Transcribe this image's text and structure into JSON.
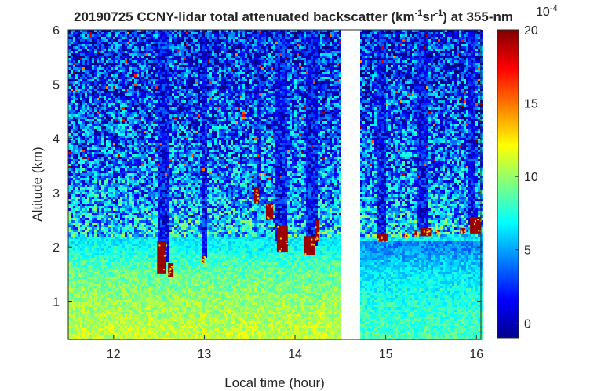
{
  "chart_data": {
    "type": "heatmap",
    "title": {
      "prefix": "20190725 CCNY-lidar total attenuated backscatter (km",
      "sup1": "-1",
      "middle": "sr",
      "sup2": "-1",
      "suffix": ") at 355-nm"
    },
    "xlabel": "Local time (hour)",
    "ylabel": "Altitude (km)",
    "xlim": [
      11.5,
      16.05
    ],
    "ylim": [
      0.3,
      6.0
    ],
    "x_ticks": [
      12,
      13,
      14,
      15,
      16
    ],
    "y_ticks": [
      1,
      2,
      3,
      4,
      5,
      6
    ],
    "colorbar": {
      "clim": [
        -1,
        20
      ],
      "ticks": [
        0,
        5,
        10,
        15,
        20
      ],
      "exponent": "10",
      "exponent_power": "-4",
      "colormap": "jet"
    },
    "data_gap": [
      14.52,
      14.72
    ],
    "background_profile": [
      {
        "alt": 0.3,
        "value": 11.0
      },
      {
        "alt": 1.0,
        "value": 10.0
      },
      {
        "alt": 1.5,
        "value": 9.0
      },
      {
        "alt": 2.0,
        "value": 7.0
      },
      {
        "alt": 3.0,
        "value": 4.5
      },
      {
        "alt": 4.5,
        "value": 3.0
      },
      {
        "alt": 6.0,
        "value": 2.0
      }
    ],
    "clear_columns": [
      {
        "t": 12.55,
        "width": 0.12,
        "from_alt": 1.7
      },
      {
        "t": 13.0,
        "width": 0.04,
        "from_alt": 1.8
      },
      {
        "t": 13.6,
        "width": 0.06,
        "from_alt": 2.9
      },
      {
        "t": 13.85,
        "width": 0.14,
        "from_alt": 2.1
      },
      {
        "t": 14.18,
        "width": 0.14,
        "from_alt": 2.0
      },
      {
        "t": 14.95,
        "width": 0.1,
        "from_alt": 2.2
      },
      {
        "t": 15.4,
        "width": 0.12,
        "from_alt": 2.3
      },
      {
        "t": 15.95,
        "width": 0.1,
        "from_alt": 2.4
      }
    ],
    "cloud_segments": [
      {
        "t0": 12.48,
        "t1": 12.58,
        "alt0": 1.5,
        "alt1": 2.1,
        "value": 20
      },
      {
        "t0": 12.6,
        "t1": 12.66,
        "alt0": 1.45,
        "alt1": 1.7,
        "value": 20
      },
      {
        "t0": 12.97,
        "t1": 13.0,
        "alt0": 1.7,
        "alt1": 1.85,
        "value": 20
      },
      {
        "t0": 13.55,
        "t1": 13.6,
        "alt0": 2.8,
        "alt1": 3.1,
        "value": 20
      },
      {
        "t0": 13.68,
        "t1": 13.76,
        "alt0": 2.5,
        "alt1": 2.8,
        "value": 20
      },
      {
        "t0": 13.8,
        "t1": 13.92,
        "alt0": 1.9,
        "alt1": 2.4,
        "value": 20
      },
      {
        "t0": 14.1,
        "t1": 14.22,
        "alt0": 1.85,
        "alt1": 2.2,
        "value": 20
      },
      {
        "t0": 14.22,
        "t1": 14.27,
        "alt0": 2.1,
        "alt1": 2.5,
        "value": 20
      },
      {
        "t0": 14.9,
        "t1": 15.02,
        "alt0": 2.1,
        "alt1": 2.25,
        "value": 20
      },
      {
        "t0": 15.2,
        "t1": 15.24,
        "alt0": 2.18,
        "alt1": 2.25,
        "value": 20
      },
      {
        "t0": 15.3,
        "t1": 15.35,
        "alt0": 2.2,
        "alt1": 2.3,
        "value": 20
      },
      {
        "t0": 15.38,
        "t1": 15.5,
        "alt0": 2.2,
        "alt1": 2.35,
        "value": 20
      },
      {
        "t0": 15.55,
        "t1": 15.6,
        "alt0": 2.25,
        "alt1": 2.32,
        "value": 20
      },
      {
        "t0": 15.82,
        "t1": 15.88,
        "alt0": 2.25,
        "alt1": 2.35,
        "value": 20
      },
      {
        "t0": 15.93,
        "t1": 16.05,
        "alt0": 2.25,
        "alt1": 2.55,
        "value": 20
      }
    ]
  }
}
